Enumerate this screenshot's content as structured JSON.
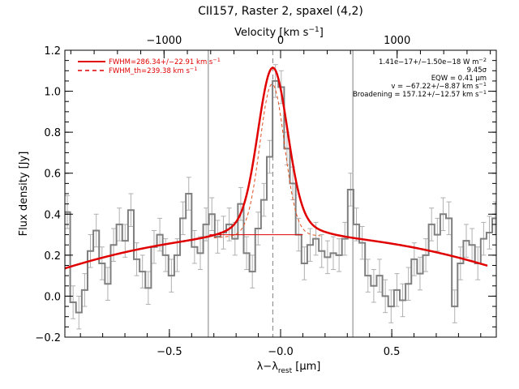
{
  "chart_data": {
    "type": "line",
    "title": "CII157, Raster 2, spaxel (4,2)",
    "xlabel_prefix": "λ−λ",
    "xlabel_sub": "rest",
    "xlabel_unit": " [μm]",
    "ylabel": "Flux density [Jy]",
    "top_xlabel": "Velocity [km s",
    "top_xlabel_sup": "−1",
    "top_xlabel_end": "]",
    "xlim": [
      -0.97,
      0.97
    ],
    "ylim": [
      -0.2,
      1.2
    ],
    "x_ticks": [
      -0.5,
      0.0,
      0.5
    ],
    "x_tick_labels": [
      "−0.5",
      "−0.0",
      "0.5"
    ],
    "y_ticks": [
      -0.2,
      0.0,
      0.2,
      0.4,
      0.6,
      0.8,
      1.0,
      1.2
    ],
    "y_tick_labels": [
      "−0.2",
      "0.0",
      "0.2",
      "0.4",
      "0.6",
      "0.8",
      "1.0",
      "1.2"
    ],
    "top_ticks_velocity": [
      -1000,
      0,
      1000
    ],
    "top_tick_labels": [
      "−1000",
      "0",
      "1000"
    ],
    "velocity_to_micron": 0.000524,
    "vertical_lines_x": [
      -0.325,
      0.325
    ],
    "line_center_x": -0.035,
    "continuum": [
      0.3,
      -0.00015,
      -0.175
    ],
    "gaussian_fit": {
      "amplitude": 0.735,
      "center": -0.035,
      "sigma": 0.065,
      "wing_amplitude": 0.08,
      "wing_sigma": 0.14
    },
    "gaussian_th": {
      "amplitude": 0.735,
      "center": -0.038,
      "sigma": 0.055
    },
    "spectrum_x": [
      -0.972,
      -0.946,
      -0.92,
      -0.894,
      -0.868,
      -0.842,
      -0.816,
      -0.79,
      -0.764,
      -0.738,
      -0.712,
      -0.686,
      -0.66,
      -0.634,
      -0.608,
      -0.582,
      -0.556,
      -0.53,
      -0.504,
      -0.478,
      -0.452,
      -0.426,
      -0.4,
      -0.374,
      -0.348,
      -0.322,
      -0.296,
      -0.27,
      -0.244,
      -0.218,
      -0.192,
      -0.166,
      -0.14,
      -0.114,
      -0.088,
      -0.062,
      -0.036,
      -0.01,
      0.016,
      0.042,
      0.068,
      0.094,
      0.12,
      0.146,
      0.172,
      0.198,
      0.224,
      0.25,
      0.276,
      0.302,
      0.328,
      0.354,
      0.38,
      0.406,
      0.432,
      0.458,
      0.484,
      0.51,
      0.536,
      0.562,
      0.588,
      0.614,
      0.64,
      0.666,
      0.692,
      0.718,
      0.744,
      0.77,
      0.796,
      0.822,
      0.848,
      0.874,
      0.9,
      0.926,
      0.952
    ],
    "spectrum_y": [
      0.41,
      -0.03,
      -0.08,
      0.03,
      0.22,
      0.32,
      0.16,
      0.06,
      0.25,
      0.35,
      0.27,
      0.42,
      0.18,
      0.12,
      0.04,
      0.24,
      0.3,
      0.2,
      0.1,
      0.2,
      0.38,
      0.5,
      0.24,
      0.21,
      0.35,
      0.4,
      0.29,
      0.31,
      0.35,
      0.28,
      0.45,
      0.21,
      0.12,
      0.33,
      0.47,
      0.68,
      1.05,
      1.02,
      0.72,
      0.55,
      0.3,
      0.16,
      0.25,
      0.28,
      0.22,
      0.19,
      0.21,
      0.2,
      0.28,
      0.52,
      0.35,
      0.26,
      0.1,
      0.05,
      0.1,
      0.0,
      -0.05,
      0.03,
      -0.02,
      0.06,
      0.18,
      0.11,
      0.2,
      0.35,
      0.3,
      0.4,
      0.38,
      -0.05,
      0.16,
      0.27,
      0.25,
      0.16,
      0.28,
      0.31,
      0.38
    ],
    "spectrum_err": 0.08,
    "legend": [
      {
        "label": "FWHM=286.34+/−22.91 km s",
        "sup": "−1",
        "style": "solid",
        "color": "#e00000"
      },
      {
        "label": "FWHM_th=239.38 km s",
        "sup": "−1",
        "style": "dashed",
        "color": "#e00000"
      }
    ],
    "annotations": [
      {
        "text": "1.41e−17+/−1.50e−18 W m",
        "sup": "−2"
      },
      {
        "text": "9.45σ",
        "sup": ""
      },
      {
        "text": "EQW = 0.41 μm",
        "sup": ""
      },
      {
        "text": "v = −67.22+/−8.87 km s",
        "sup": "−1"
      },
      {
        "text": "Broadening = 157.12+/−12.57 km s",
        "sup": "−1"
      }
    ],
    "colors": {
      "spectrum": "#7f7f7f",
      "errorbars": "#b0b0b0",
      "fit": "#e00000",
      "fit_th": "#e05020",
      "reference_lines": "#7f7f7f"
    }
  }
}
